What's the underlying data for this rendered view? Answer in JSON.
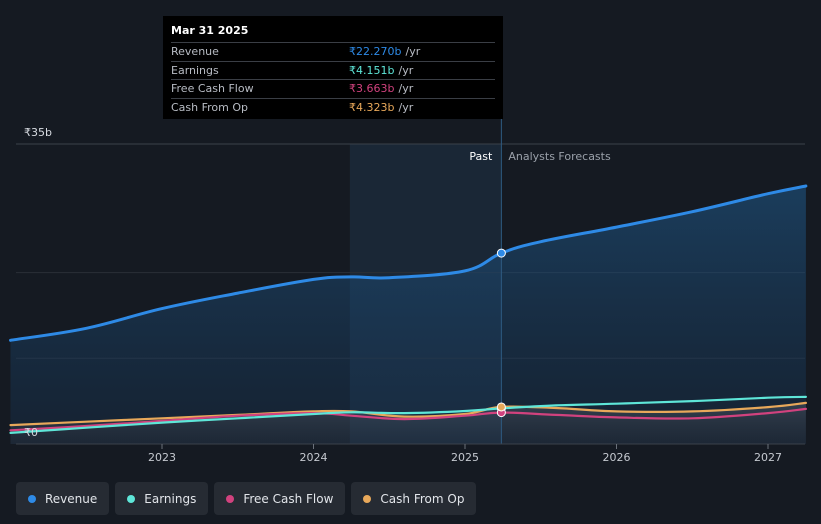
{
  "chart_data": {
    "type": "area",
    "title": "",
    "xlabel": "",
    "ylabel": "",
    "ylim": [
      0,
      35
    ],
    "y_tick_labels": {
      "top": "₹35b",
      "bottom": "₹0"
    },
    "x_ticks": [
      {
        "label": "2023",
        "x": 2023.0
      },
      {
        "label": "2024",
        "x": 2024.0
      },
      {
        "label": "2025",
        "x": 2025.0
      },
      {
        "label": "2026",
        "x": 2026.0
      },
      {
        "label": "2027",
        "x": 2027.0
      }
    ],
    "xlim": [
      2021.79,
      2027.25
    ],
    "past_label": "Past",
    "forecast_label": "Analysts Forecasts",
    "highlight_start": 2024.24,
    "divider_x": 2025.24,
    "series": [
      {
        "name": "Revenue",
        "color": "#2e8ae6",
        "points": [
          [
            2022.0,
            12.1
          ],
          [
            2022.5,
            13.5
          ],
          [
            2023.0,
            15.8
          ],
          [
            2023.5,
            17.6
          ],
          [
            2024.0,
            19.2
          ],
          [
            2024.25,
            19.5
          ],
          [
            2024.5,
            19.4
          ],
          [
            2025.0,
            20.2
          ],
          [
            2025.24,
            22.27
          ],
          [
            2025.5,
            23.6
          ],
          [
            2026.0,
            25.3
          ],
          [
            2026.5,
            27.1
          ],
          [
            2027.0,
            29.2
          ],
          [
            2027.25,
            30.1
          ]
        ]
      },
      {
        "name": "Earnings",
        "color": "#5ee6d8",
        "points": [
          [
            2022.0,
            1.3
          ],
          [
            2022.5,
            1.9
          ],
          [
            2023.0,
            2.5
          ],
          [
            2023.5,
            3.0
          ],
          [
            2024.0,
            3.5
          ],
          [
            2024.25,
            3.7
          ],
          [
            2024.6,
            3.6
          ],
          [
            2025.0,
            3.85
          ],
          [
            2025.24,
            4.151
          ],
          [
            2025.6,
            4.5
          ],
          [
            2026.0,
            4.7
          ],
          [
            2026.5,
            5.0
          ],
          [
            2027.0,
            5.4
          ],
          [
            2027.25,
            5.5
          ]
        ]
      },
      {
        "name": "Free Cash Flow",
        "color": "#d1427e",
        "points": [
          [
            2022.0,
            1.6
          ],
          [
            2022.5,
            2.1
          ],
          [
            2023.0,
            2.7
          ],
          [
            2023.5,
            3.3
          ],
          [
            2024.0,
            3.6
          ],
          [
            2024.25,
            3.3
          ],
          [
            2024.6,
            2.9
          ],
          [
            2025.0,
            3.3
          ],
          [
            2025.24,
            3.663
          ],
          [
            2025.6,
            3.4
          ],
          [
            2026.0,
            3.1
          ],
          [
            2026.5,
            3.0
          ],
          [
            2027.0,
            3.6
          ],
          [
            2027.25,
            4.1
          ]
        ]
      },
      {
        "name": "Cash From Op",
        "color": "#e8a85a",
        "points": [
          [
            2022.0,
            2.2
          ],
          [
            2022.5,
            2.6
          ],
          [
            2023.0,
            3.0
          ],
          [
            2023.5,
            3.4
          ],
          [
            2024.0,
            3.8
          ],
          [
            2024.25,
            3.8
          ],
          [
            2024.6,
            3.2
          ],
          [
            2025.0,
            3.5
          ],
          [
            2025.24,
            4.323
          ],
          [
            2025.6,
            4.2
          ],
          [
            2026.0,
            3.8
          ],
          [
            2026.5,
            3.8
          ],
          [
            2027.0,
            4.3
          ],
          [
            2027.25,
            4.8
          ]
        ]
      }
    ]
  },
  "tooltip": {
    "date": "Mar 31 2025",
    "rows": [
      {
        "label": "Revenue",
        "value": "₹22.270b",
        "unit": "/yr",
        "color": "#2e8ae6"
      },
      {
        "label": "Earnings",
        "value": "₹4.151b",
        "unit": "/yr",
        "color": "#5ee6d8"
      },
      {
        "label": "Free Cash Flow",
        "value": "₹3.663b",
        "unit": "/yr",
        "color": "#d1427e"
      },
      {
        "label": "Cash From Op",
        "value": "₹4.323b",
        "unit": "/yr",
        "color": "#e8a85a"
      }
    ]
  },
  "legend": [
    {
      "label": "Revenue",
      "color": "#2e8ae6"
    },
    {
      "label": "Earnings",
      "color": "#5ee6d8"
    },
    {
      "label": "Free Cash Flow",
      "color": "#d1427e"
    },
    {
      "label": "Cash From Op",
      "color": "#e8a85a"
    }
  ]
}
